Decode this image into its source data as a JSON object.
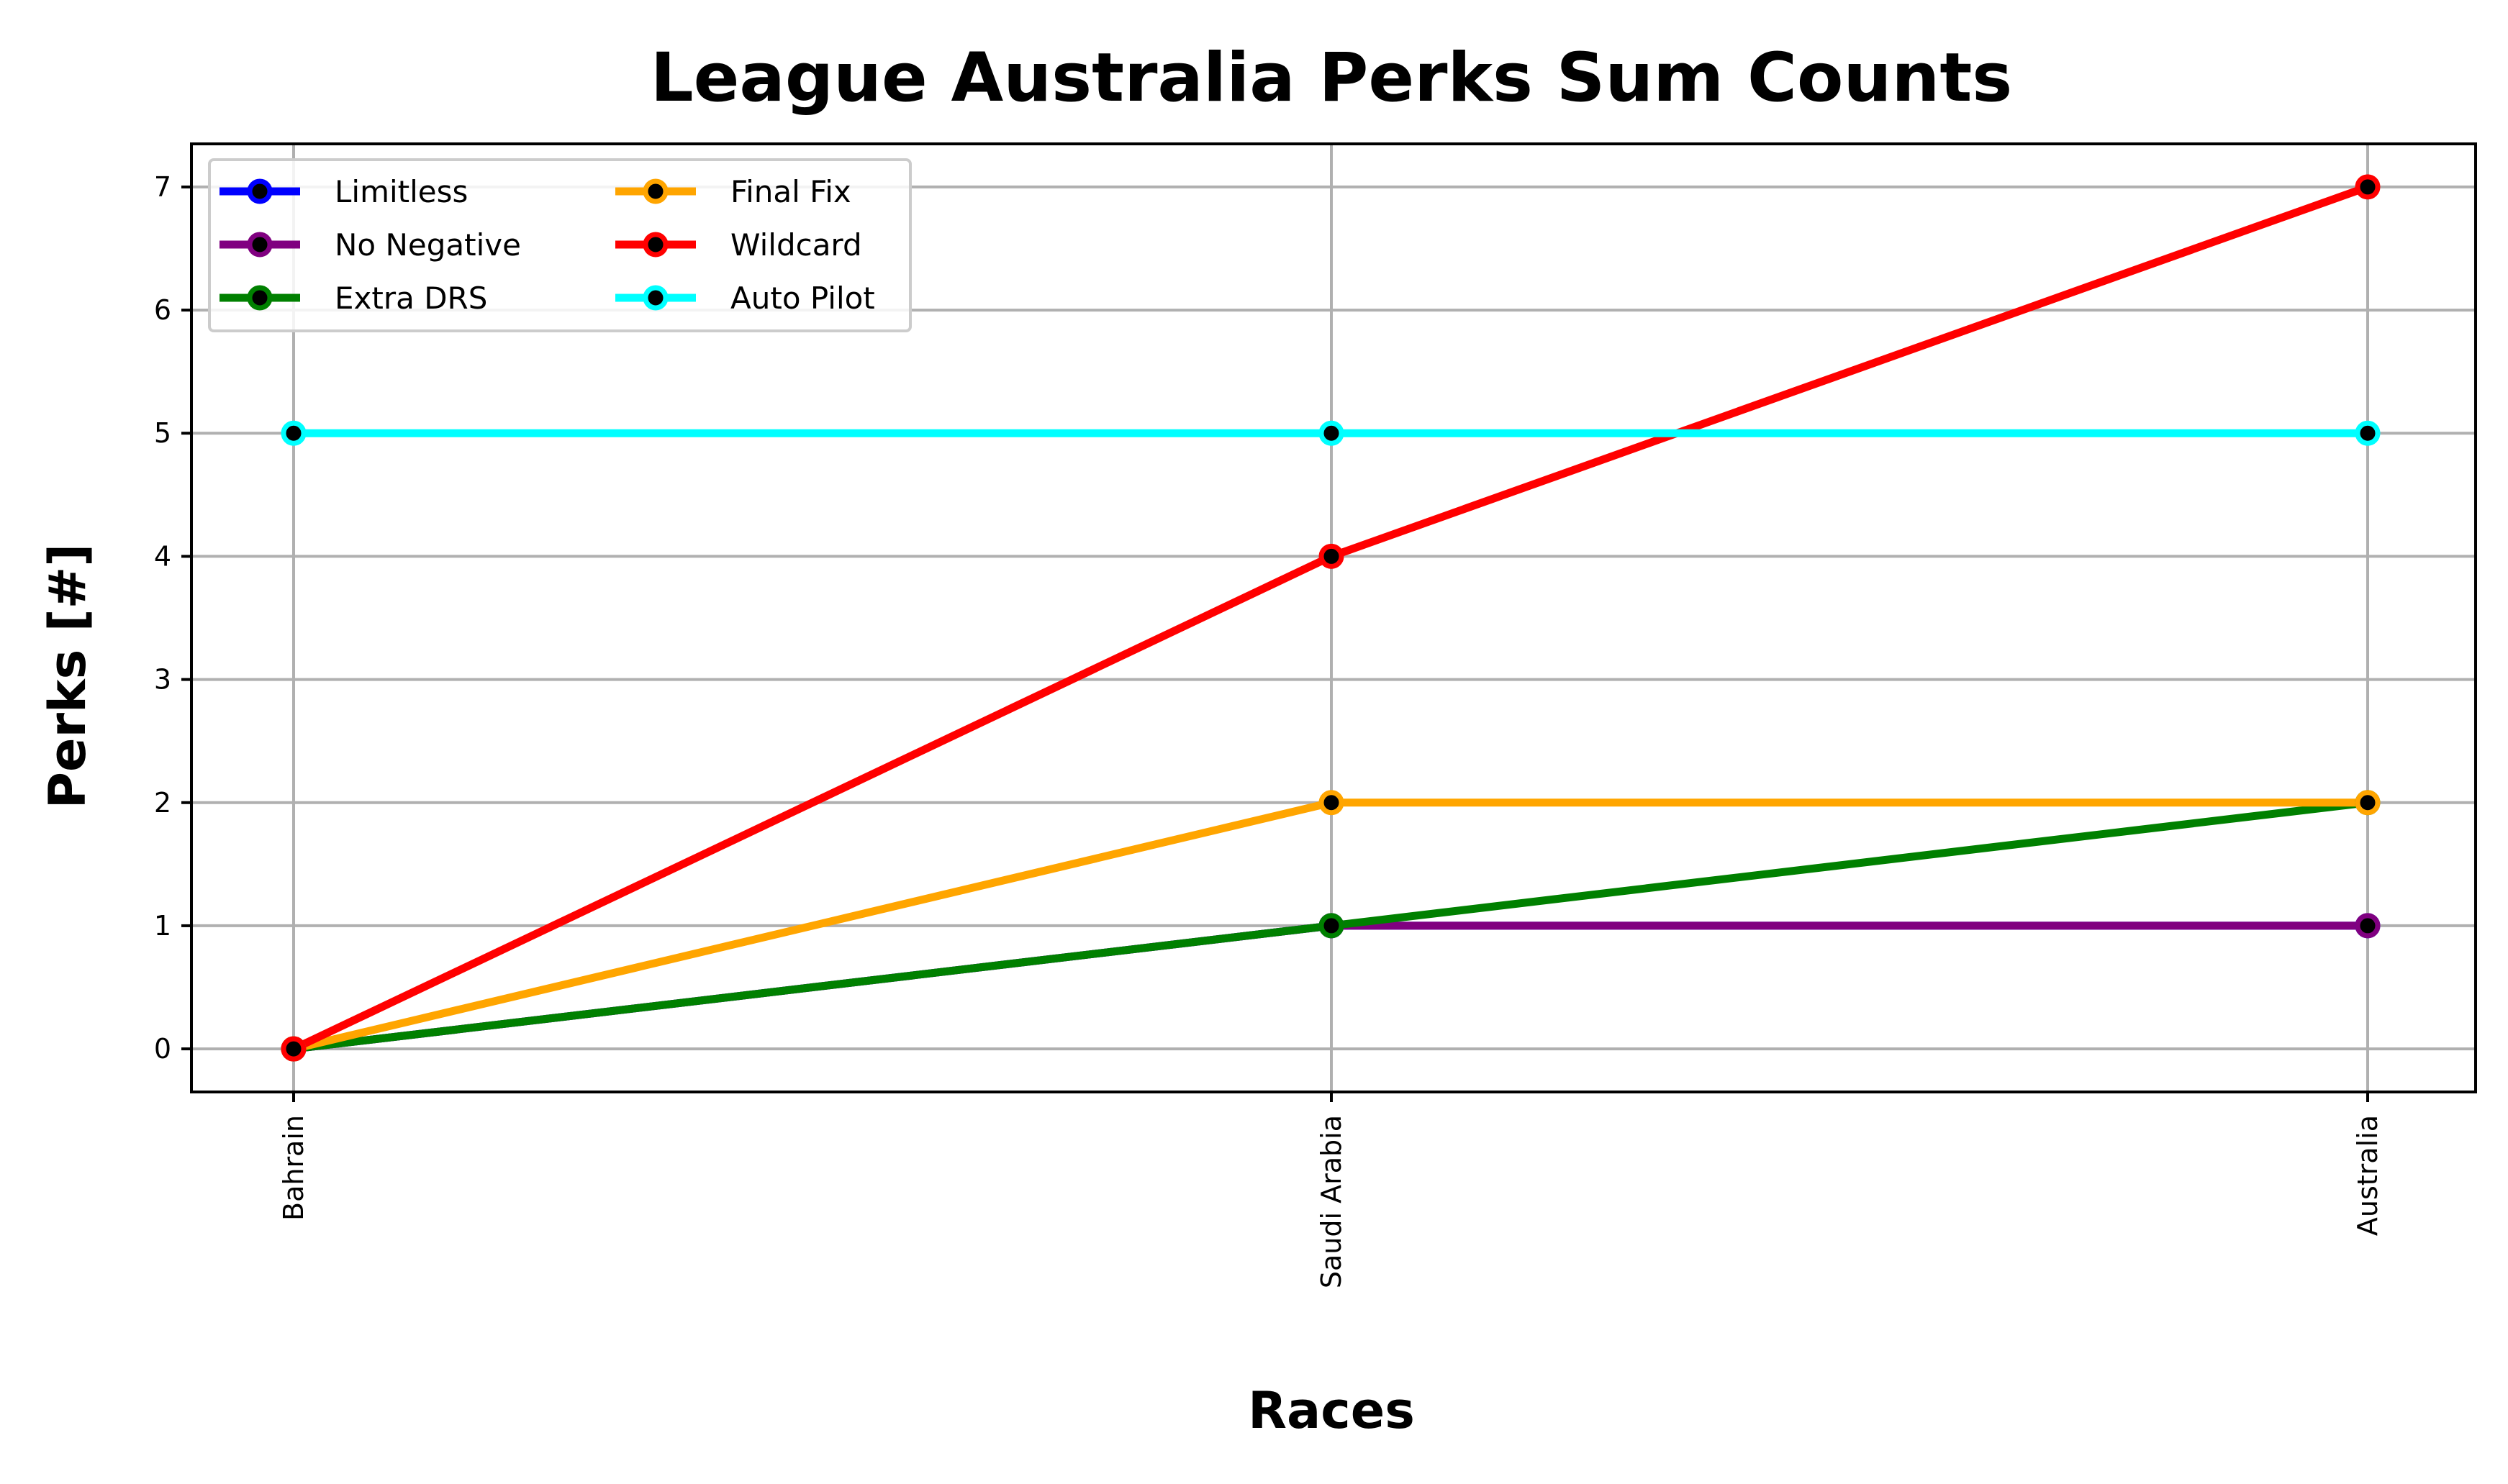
{
  "chart_data": {
    "type": "line",
    "title": "League Australia Perks Sum Counts",
    "xlabel": "Races",
    "ylabel": "Perks [#]",
    "categories": [
      "Bahrain",
      "Saudi Arabia",
      "Australia"
    ],
    "ylim": [
      -0.35,
      7.35
    ],
    "yticks": [
      0,
      1,
      2,
      3,
      4,
      5,
      6,
      7
    ],
    "grid": true,
    "legend_position": "top-left",
    "legend_columns": 2,
    "series": [
      {
        "name": "Limitless",
        "color": "#0000ff",
        "values": [
          0,
          1,
          1
        ]
      },
      {
        "name": "No Negative",
        "color": "#800080",
        "values": [
          0,
          1,
          1
        ]
      },
      {
        "name": "Extra DRS",
        "color": "#008000",
        "values": [
          0,
          1,
          2
        ]
      },
      {
        "name": "Final Fix",
        "color": "#ffa500",
        "values": [
          0,
          2,
          2
        ]
      },
      {
        "name": "Wildcard",
        "color": "#ff0000",
        "values": [
          0,
          4,
          7
        ]
      },
      {
        "name": "Auto Pilot",
        "color": "#00ffff",
        "values": [
          5,
          5,
          5
        ]
      }
    ]
  }
}
